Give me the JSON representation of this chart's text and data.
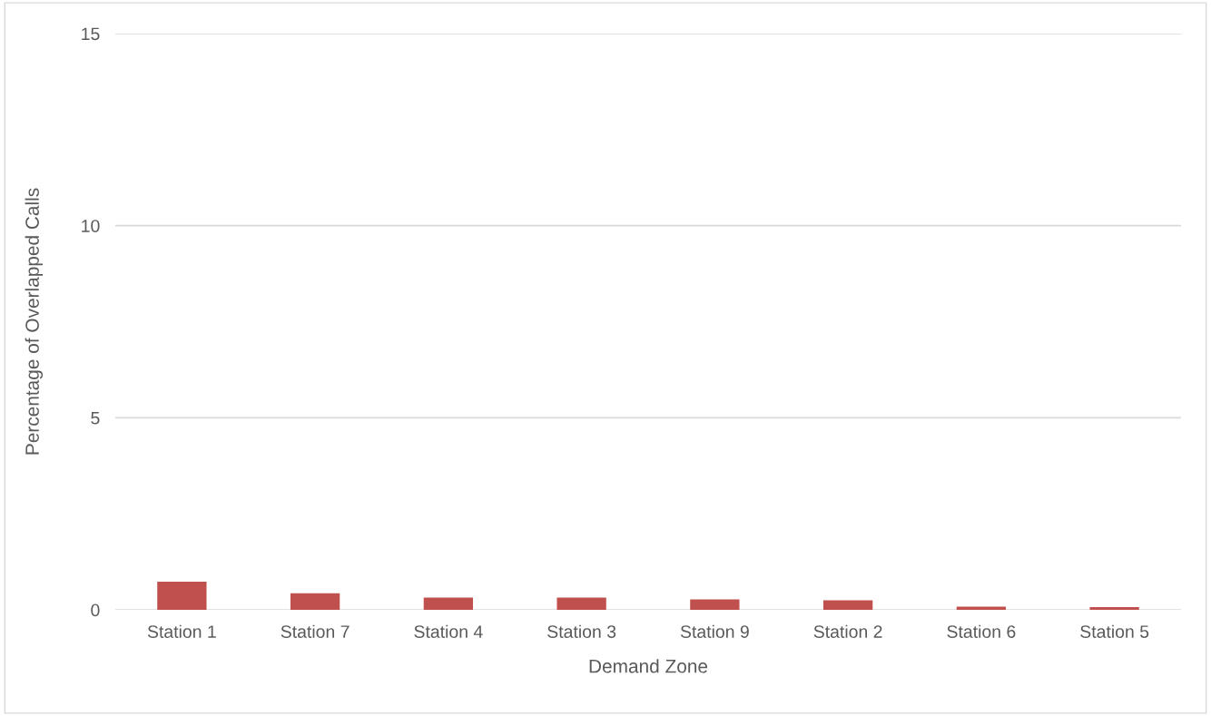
{
  "chart_data": {
    "type": "bar",
    "xlabel": "Demand Zone",
    "ylabel": "Percentage of Overlapped Calls",
    "categories": [
      "Station 1",
      "Station 7",
      "Station 4",
      "Station 3",
      "Station 9",
      "Station 2",
      "Station 6",
      "Station 5"
    ],
    "values": [
      0.73,
      0.43,
      0.32,
      0.32,
      0.27,
      0.25,
      0.08,
      0.07
    ],
    "color": "#c0504d",
    "ylim": [
      0,
      15
    ],
    "yticks": [
      0,
      5,
      10,
      15
    ],
    "grid": "y"
  }
}
